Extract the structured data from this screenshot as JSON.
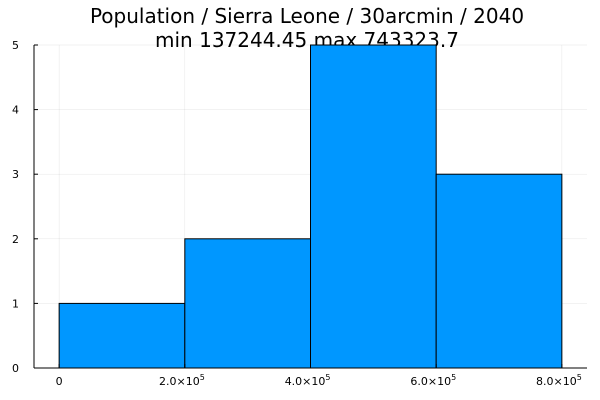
{
  "chart_data": {
    "type": "bar",
    "title": "Population / Sierra Leone / 30arcmin / 2040",
    "subtitle": "min 137244.45  max 743323.7",
    "xlabel": "",
    "ylabel": "",
    "bins": [
      {
        "x0": 0,
        "x1": 200000,
        "count": 1
      },
      {
        "x0": 200000,
        "x1": 400000,
        "count": 2
      },
      {
        "x0": 400000,
        "x1": 600000,
        "count": 5
      },
      {
        "x0": 600000,
        "x1": 800000,
        "count": 3
      }
    ],
    "xlim": [
      -40000,
      840000
    ],
    "ylim": [
      0,
      5
    ],
    "x_ticks": [
      {
        "value": 0,
        "mantissa": "0",
        "exponent": ""
      },
      {
        "value": 200000,
        "mantissa": "2.0×10",
        "exponent": "5"
      },
      {
        "value": 400000,
        "mantissa": "4.0×10",
        "exponent": "5"
      },
      {
        "value": 600000,
        "mantissa": "6.0×10",
        "exponent": "5"
      },
      {
        "value": 800000,
        "mantissa": "8.0×10",
        "exponent": "5"
      }
    ],
    "y_ticks": [
      0,
      1,
      2,
      3,
      4,
      5
    ],
    "bar_color": "#0097ff",
    "grid": true,
    "legend": "none"
  }
}
